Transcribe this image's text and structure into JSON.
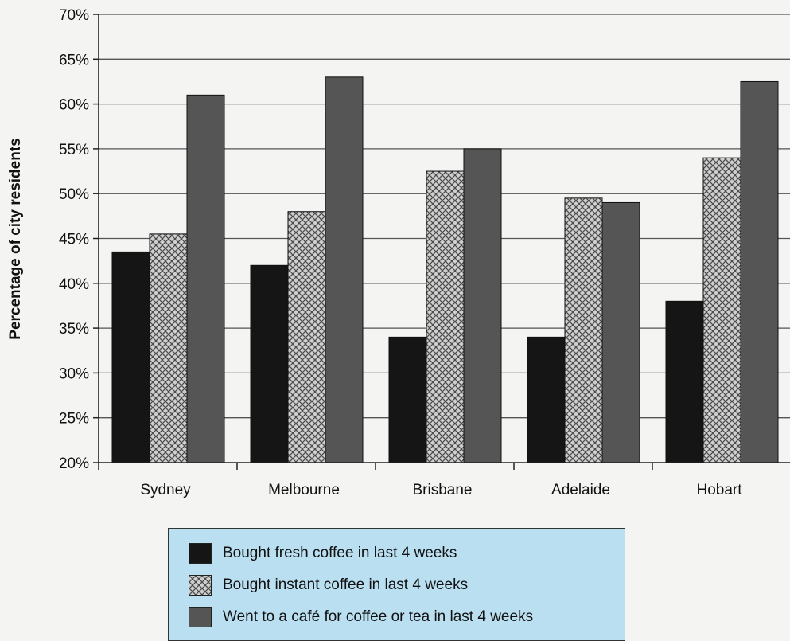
{
  "chart_data": {
    "type": "bar",
    "ylabel": "Percentage of city residents",
    "ylim": [
      20,
      70
    ],
    "yticks": [
      "20%",
      "25%",
      "30%",
      "35%",
      "40%",
      "45%",
      "50%",
      "55%",
      "60%",
      "65%",
      "70%"
    ],
    "grid": true,
    "legend_position": "bottom",
    "categories": [
      "Sydney",
      "Melbourne",
      "Brisbane",
      "Adelaide",
      "Hobart"
    ],
    "series": [
      {
        "name": "Bought fresh coffee in last 4 weeks",
        "values": [
          43.5,
          42,
          34,
          34,
          38
        ],
        "color": "#151515",
        "fill": "solid"
      },
      {
        "name": "Bought instant coffee in last 4 weeks",
        "values": [
          45.5,
          48,
          52.5,
          49.5,
          54
        ],
        "color": "#9a9a9a",
        "fill": "crosshatch"
      },
      {
        "name": "Went to a café for coffee or tea in last 4 weeks",
        "values": [
          61,
          63,
          55,
          49,
          62.5
        ],
        "color": "#555555",
        "fill": "solid"
      }
    ]
  }
}
